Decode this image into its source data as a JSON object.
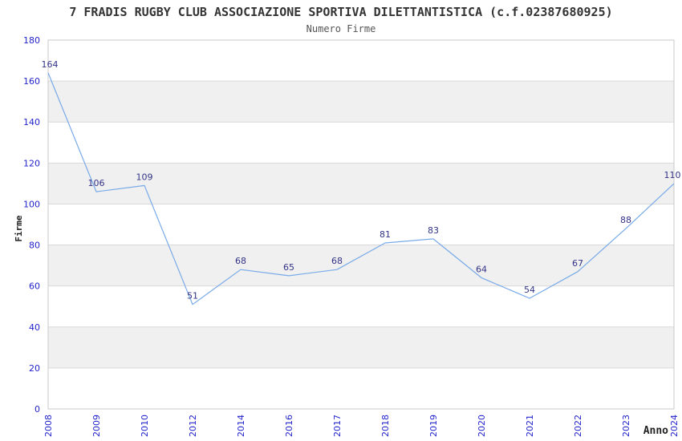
{
  "chart_data": {
    "type": "line",
    "title": "7 FRADIS RUGBY CLUB ASSOCIAZIONE SPORTIVA DILETTANTISTICA (c.f.02387680925)",
    "subtitle": "Numero Firme",
    "xlabel": "Anno",
    "ylabel": "Firme",
    "categories": [
      "2008",
      "2009",
      "2010",
      "2012",
      "2014",
      "2016",
      "2017",
      "2018",
      "2019",
      "2020",
      "2021",
      "2022",
      "2023",
      "2024"
    ],
    "values": [
      164,
      106,
      109,
      51,
      68,
      65,
      68,
      81,
      83,
      64,
      54,
      67,
      88,
      110
    ],
    "ylim": [
      0,
      180
    ],
    "ytick_step": 20,
    "yticks": [
      0,
      20,
      40,
      60,
      80,
      100,
      120,
      140,
      160,
      180
    ],
    "grid": true,
    "legend": "none",
    "value_labels_shown": true,
    "colors": {
      "line": "#78aae8",
      "band_even": "#ffffff",
      "band_odd": "#f0f0f0",
      "gridline": "#d9d9d9",
      "frame": "#c9c9c9",
      "tick_label": "#2424cc",
      "value_label": "#333387",
      "title": "#333333",
      "subtitle": "#555555",
      "axis_title": "#222222"
    }
  }
}
